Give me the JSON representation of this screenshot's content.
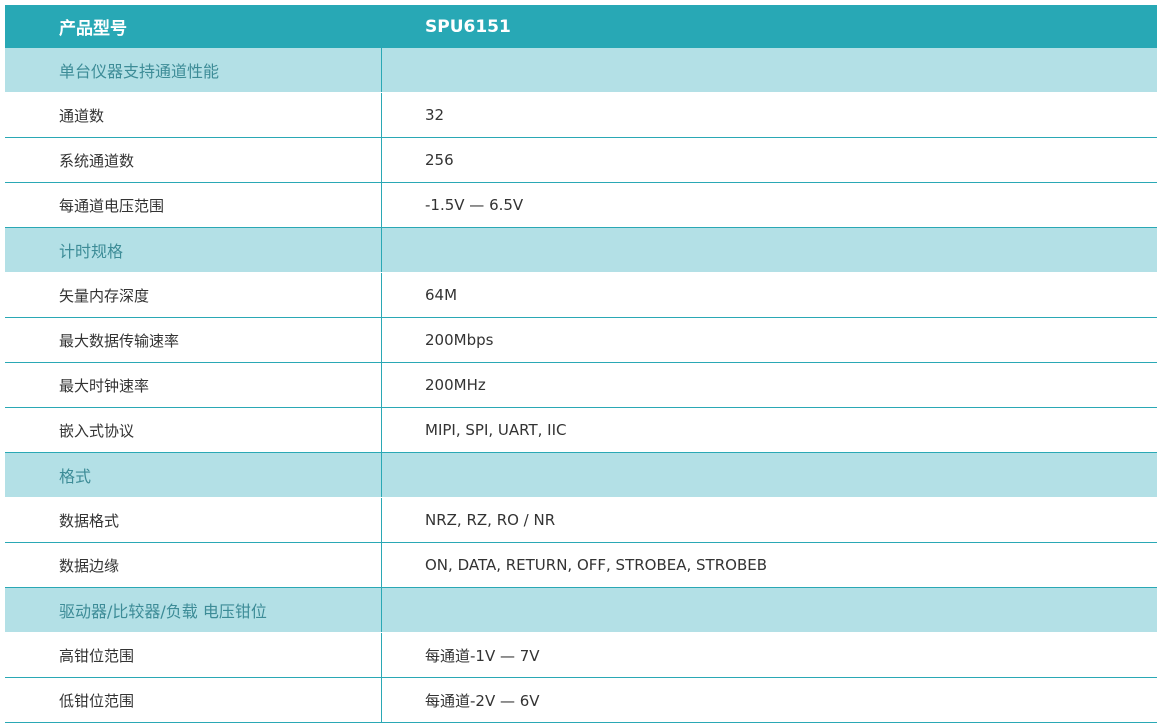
{
  "header": {
    "label": "产品型号",
    "value": "SPU6151"
  },
  "colors": {
    "header_bg": "#28a8b5",
    "section_bg": "#b3e0e6",
    "border": "#2aa8b5"
  },
  "rows": [
    {
      "type": "section",
      "label": "单台仪器支持通道性能",
      "value": ""
    },
    {
      "type": "data",
      "label": "通道数",
      "value": "32"
    },
    {
      "type": "data",
      "label": "系统通道数",
      "value": "256"
    },
    {
      "type": "data",
      "label": "每通道电压范围",
      "value": "-1.5V — 6.5V"
    },
    {
      "type": "section",
      "label": "计时规格",
      "value": ""
    },
    {
      "type": "data",
      "label": "矢量内存深度",
      "value": "64M"
    },
    {
      "type": "data",
      "label": "最大数据传输速率",
      "value": "200Mbps"
    },
    {
      "type": "data",
      "label": "最大时钟速率",
      "value": "200MHz"
    },
    {
      "type": "data",
      "label": "嵌入式协议",
      "value": "MIPI, SPI, UART, IIC"
    },
    {
      "type": "section",
      "label": "格式",
      "value": ""
    },
    {
      "type": "data",
      "label": "数据格式",
      "value": "NRZ, RZ, RO / NR"
    },
    {
      "type": "data",
      "label": "数据边缘",
      "value": "ON, DATA, RETURN, OFF, STROBEA, STROBEB"
    },
    {
      "type": "section",
      "label": "驱动器/比较器/负载 电压钳位",
      "value": ""
    },
    {
      "type": "data",
      "label": "高钳位范围",
      "value": "每通道-1V — 7V"
    },
    {
      "type": "data",
      "label": "低钳位范围",
      "value": "每通道-2V — 6V"
    }
  ]
}
